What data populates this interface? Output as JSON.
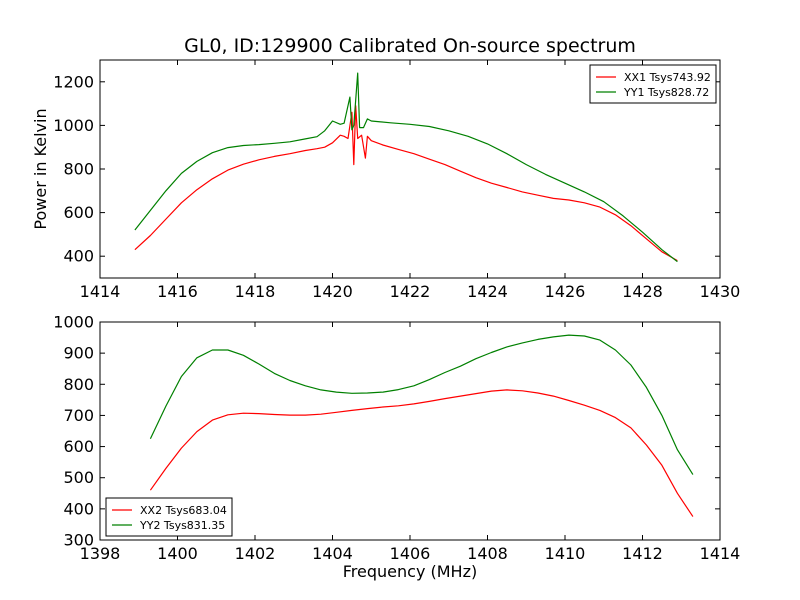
{
  "chart_data": [
    {
      "type": "line",
      "title": "GL0, ID:129900 Calibrated On-source spectrum",
      "xlabel": "",
      "ylabel": "Power in Kelvin",
      "xlim": [
        1414,
        1430
      ],
      "ylim": [
        300,
        1300
      ],
      "xticks": [
        "1414",
        "1416",
        "1418",
        "1420",
        "1422",
        "1424",
        "1426",
        "1428",
        "1430"
      ],
      "yticks": [
        "400",
        "600",
        "800",
        "1000",
        "1200"
      ],
      "grid": false,
      "legend_position": "top-right",
      "series": [
        {
          "name": "XX1 Tsys743.92",
          "color": "#ff0000",
          "x": [
            1414.9,
            1415.3,
            1415.7,
            1416.1,
            1416.5,
            1416.9,
            1417.3,
            1417.7,
            1418.1,
            1418.5,
            1418.9,
            1419.3,
            1419.6,
            1419.8,
            1420.0,
            1420.2,
            1420.3,
            1420.4,
            1420.5,
            1420.55,
            1420.6,
            1420.65,
            1420.75,
            1420.85,
            1420.9,
            1421.0,
            1421.3,
            1421.7,
            1422.1,
            1422.5,
            1422.9,
            1423.3,
            1423.7,
            1424.1,
            1424.5,
            1424.9,
            1425.3,
            1425.7,
            1426.1,
            1426.5,
            1426.9,
            1427.3,
            1427.7,
            1428.1,
            1428.5,
            1428.9
          ],
          "y": [
            430,
            495,
            570,
            645,
            705,
            755,
            795,
            822,
            842,
            858,
            870,
            885,
            893,
            900,
            920,
            955,
            950,
            940,
            1060,
            820,
            1090,
            940,
            955,
            850,
            950,
            930,
            910,
            890,
            870,
            845,
            820,
            790,
            760,
            735,
            715,
            695,
            680,
            665,
            658,
            645,
            625,
            590,
            540,
            480,
            420,
            380
          ]
        },
        {
          "name": "YY1 Tsys828.72",
          "color": "#008000",
          "x": [
            1414.9,
            1415.3,
            1415.7,
            1416.1,
            1416.5,
            1416.9,
            1417.3,
            1417.7,
            1418.1,
            1418.5,
            1418.9,
            1419.3,
            1419.6,
            1419.8,
            1420.0,
            1420.2,
            1420.3,
            1420.45,
            1420.5,
            1420.55,
            1420.65,
            1420.7,
            1420.8,
            1420.9,
            1421.0,
            1421.5,
            1422.0,
            1422.5,
            1423.0,
            1423.5,
            1424.0,
            1424.5,
            1425.0,
            1425.5,
            1426.0,
            1426.5,
            1427.0,
            1427.5,
            1428.0,
            1428.5,
            1428.9
          ],
          "y": [
            520,
            610,
            700,
            780,
            835,
            875,
            898,
            908,
            912,
            918,
            925,
            938,
            948,
            975,
            1020,
            1005,
            1010,
            1130,
            980,
            1000,
            1240,
            990,
            990,
            1030,
            1020,
            1012,
            1005,
            995,
            975,
            950,
            915,
            870,
            820,
            775,
            735,
            695,
            650,
            585,
            510,
            430,
            375
          ]
        }
      ]
    },
    {
      "type": "line",
      "title": "",
      "xlabel": "Frequency (MHz)",
      "ylabel": "",
      "xlim": [
        1398,
        1414
      ],
      "ylim": [
        300,
        1000
      ],
      "xticks": [
        "1398",
        "1400",
        "1402",
        "1404",
        "1406",
        "1408",
        "1410",
        "1412",
        "1414"
      ],
      "yticks": [
        "300",
        "400",
        "500",
        "600",
        "700",
        "800",
        "900",
        "1000"
      ],
      "grid": false,
      "legend_position": "bottom-left",
      "series": [
        {
          "name": "XX2 Tsys683.04",
          "color": "#ff0000",
          "x": [
            1399.3,
            1399.7,
            1400.1,
            1400.5,
            1400.9,
            1401.3,
            1401.7,
            1402.1,
            1402.5,
            1402.9,
            1403.3,
            1403.7,
            1404.1,
            1404.5,
            1404.9,
            1405.3,
            1405.7,
            1406.1,
            1406.5,
            1406.9,
            1407.3,
            1407.7,
            1408.1,
            1408.5,
            1408.9,
            1409.3,
            1409.7,
            1410.1,
            1410.5,
            1410.9,
            1411.3,
            1411.7,
            1412.1,
            1412.5,
            1412.9,
            1413.3
          ],
          "y": [
            460,
            530,
            595,
            648,
            685,
            702,
            707,
            706,
            703,
            701,
            701,
            704,
            710,
            716,
            722,
            727,
            731,
            737,
            745,
            754,
            762,
            770,
            778,
            782,
            779,
            772,
            762,
            748,
            733,
            716,
            693,
            660,
            605,
            540,
            450,
            375
          ]
        },
        {
          "name": "YY2 Tsys831.35",
          "color": "#008000",
          "x": [
            1399.3,
            1399.7,
            1400.1,
            1400.5,
            1400.9,
            1401.3,
            1401.7,
            1402.1,
            1402.5,
            1402.9,
            1403.3,
            1403.7,
            1404.1,
            1404.5,
            1404.9,
            1405.3,
            1405.7,
            1406.1,
            1406.5,
            1406.9,
            1407.3,
            1407.7,
            1408.1,
            1408.5,
            1408.9,
            1409.3,
            1409.7,
            1410.1,
            1410.5,
            1410.9,
            1411.3,
            1411.7,
            1412.1,
            1412.5,
            1412.9,
            1413.3
          ],
          "y": [
            625,
            730,
            825,
            885,
            910,
            910,
            893,
            865,
            835,
            812,
            795,
            782,
            775,
            771,
            772,
            775,
            783,
            795,
            815,
            838,
            858,
            882,
            902,
            920,
            933,
            944,
            952,
            958,
            955,
            942,
            910,
            862,
            790,
            700,
            590,
            510
          ]
        }
      ]
    }
  ]
}
